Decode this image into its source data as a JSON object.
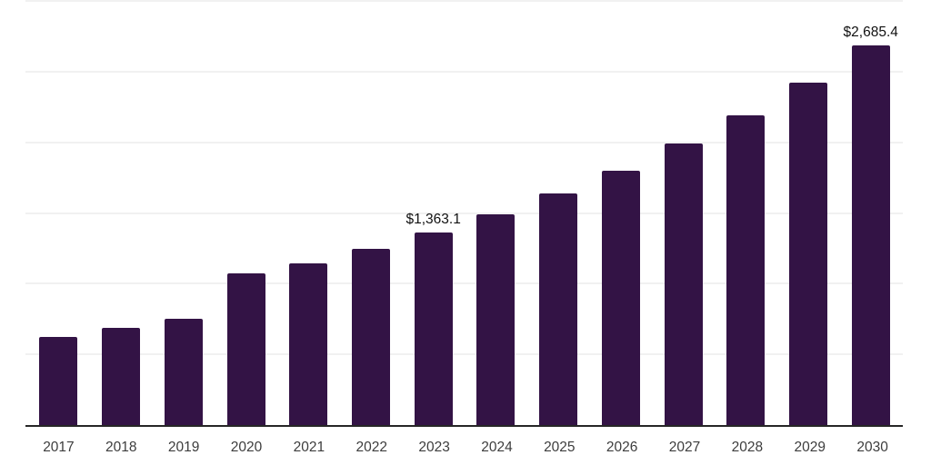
{
  "chart_data": {
    "type": "bar",
    "title": "",
    "categories": [
      "2017",
      "2018",
      "2019",
      "2020",
      "2021",
      "2022",
      "2023",
      "2024",
      "2025",
      "2026",
      "2027",
      "2028",
      "2029",
      "2030"
    ],
    "values": [
      626,
      690,
      754,
      1070,
      1145,
      1248,
      1363.1,
      1490,
      1640,
      1796,
      1992,
      2188,
      2425,
      2685.4
    ],
    "annotations": [
      {
        "category": "2023",
        "text": "$1,363.1"
      },
      {
        "category": "2030",
        "text": "$2,685.4"
      }
    ],
    "xlabel": "",
    "ylabel": "",
    "ylim": [
      0,
      3000
    ],
    "grid_step": 500,
    "grid": "horizontal-only",
    "y_axis_labels_visible": false,
    "legend": "none",
    "colors": {
      "bar": "#331345",
      "baseline": "#262626",
      "gridline": "#f1f1f1",
      "data_label": "#111111",
      "tick_label": "#3d3d3d",
      "background": "#ffffff"
    }
  }
}
